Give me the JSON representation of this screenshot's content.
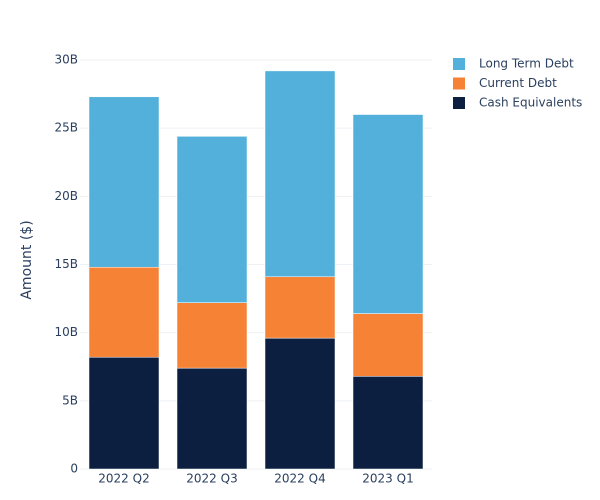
{
  "chart_data": {
    "type": "stacked-bar",
    "y_label": "Amount ($)",
    "categories": [
      "2022 Q2",
      "2022 Q3",
      "2022 Q4",
      "2023 Q1"
    ],
    "series": [
      {
        "name": "Cash Equivalents",
        "color": "#0c1f40",
        "values": [
          8200000000,
          7400000000,
          9600000000,
          6800000000
        ]
      },
      {
        "name": "Current Debt",
        "color": "#f58235",
        "values": [
          6600000000,
          4800000000,
          4500000000,
          4600000000
        ]
      },
      {
        "name": "Long Term Debt",
        "color": "#52b0db",
        "values": [
          12500000000,
          12200000000,
          15100000000,
          14600000000
        ]
      }
    ],
    "ylim": [
      0,
      30000000000
    ],
    "yticks": [
      0,
      {
        "value": 5000000000,
        "label": "5B"
      },
      {
        "value": 10000000000,
        "label": "10B"
      },
      {
        "value": 15000000000,
        "label": "15B"
      },
      {
        "value": 20000000000,
        "label": "20B"
      },
      {
        "value": 25000000000,
        "label": "25B"
      },
      {
        "value": 30000000000,
        "label": "30B"
      }
    ],
    "grid": true
  }
}
